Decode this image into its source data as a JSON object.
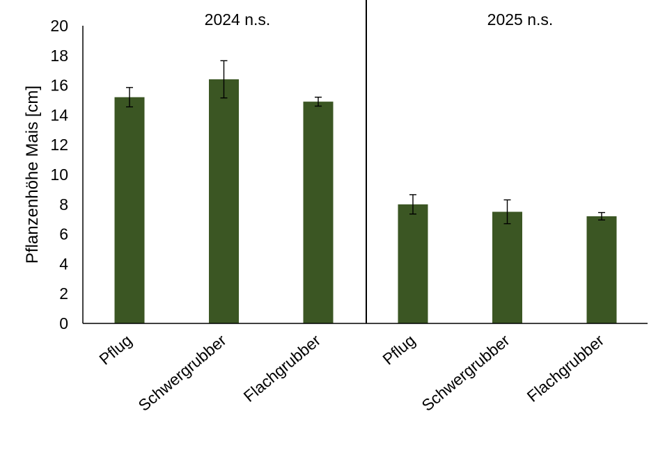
{
  "chart_data": {
    "type": "bar",
    "title": "",
    "ylabel": "Pflanzenhöhe Mais [cm]",
    "xlabel": "",
    "ylim": [
      0,
      20
    ],
    "yticks": [
      "0",
      "2",
      "4",
      "6",
      "8",
      "10",
      "12",
      "14",
      "16",
      "18",
      "20"
    ],
    "grid": false,
    "bar_color": "#3b5623",
    "groups": [
      {
        "label": "2024 n.s.",
        "categories": [
          "Pflug",
          "Schwergrubber",
          "Flachgrubber"
        ],
        "values": [
          15.2,
          16.4,
          14.9
        ],
        "errors": [
          0.65,
          1.25,
          0.3
        ]
      },
      {
        "label": "2025 n.s.",
        "categories": [
          "Pflug",
          "Schwergrubber",
          "Flachgrubber"
        ],
        "values": [
          8.0,
          7.5,
          7.2
        ],
        "errors": [
          0.65,
          0.8,
          0.25
        ]
      }
    ]
  }
}
